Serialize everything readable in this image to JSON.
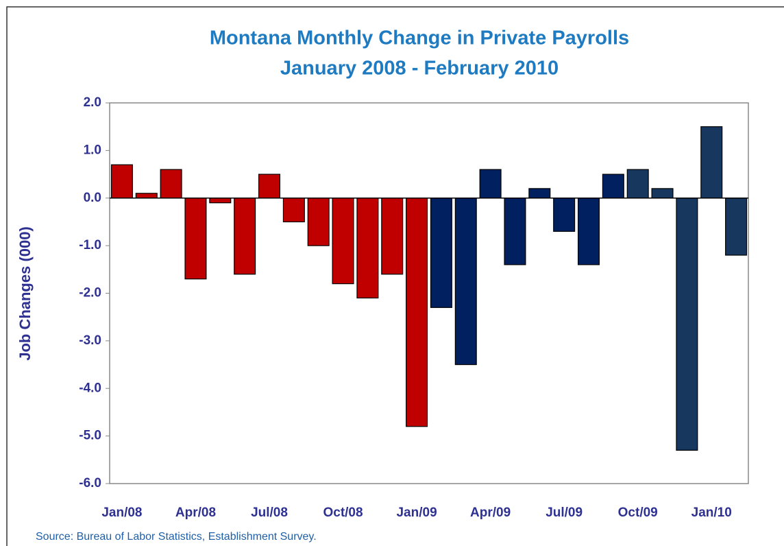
{
  "chart_data": {
    "type": "bar",
    "title": "Montana Monthly Change in Private Payrolls",
    "subtitle": "January 2008 - February 2010",
    "y_label": "Job Changes (000)",
    "source": "Source: Bureau of Labor Statistics, Establishment Survey.",
    "categories": [
      "Jan/08",
      null,
      null,
      "Apr/08",
      null,
      null,
      "Jul/08",
      null,
      null,
      "Oct/08",
      null,
      null,
      "Jan/09",
      null,
      null,
      "Apr/09",
      null,
      null,
      "Jul/09",
      null,
      null,
      "Oct/09",
      null,
      null,
      "Jan/10",
      null
    ],
    "values": [
      0.7,
      0.1,
      0.6,
      -1.7,
      -0.1,
      -1.6,
      0.5,
      -0.5,
      -1.0,
      -1.8,
      -2.1,
      -1.6,
      -4.8,
      -2.3,
      -3.5,
      0.6,
      -1.4,
      0.2,
      -0.7,
      -1.4,
      0.5,
      0.6,
      0.2,
      -5.3,
      1.5,
      -1.2
    ],
    "colors": [
      "#c00000",
      "#c00000",
      "#c00000",
      "#c00000",
      "#c00000",
      "#c00000",
      "#c00000",
      "#c00000",
      "#c00000",
      "#c00000",
      "#c00000",
      "#c00000",
      "#c00000",
      "#002060",
      "#002060",
      "#002060",
      "#002060",
      "#002060",
      "#002060",
      "#002060",
      "#002060",
      "#17375e",
      "#17375e",
      "#17375e",
      "#17375e",
      "#17375e"
    ],
    "ylim": [
      -6,
      2
    ],
    "yticks": [
      {
        "value": -6,
        "label": "-6.0"
      },
      {
        "value": -5,
        "label": "-5.0"
      },
      {
        "value": -4,
        "label": "-4.0"
      },
      {
        "value": -3,
        "label": "-3.0"
      },
      {
        "value": -2,
        "label": "-2.0"
      },
      {
        "value": -1,
        "label": "-1.0"
      },
      {
        "value": 0,
        "label": "0.0"
      },
      {
        "value": 1,
        "label": "1.0"
      },
      {
        "value": 2,
        "label": "2.0"
      }
    ],
    "grid": false
  }
}
